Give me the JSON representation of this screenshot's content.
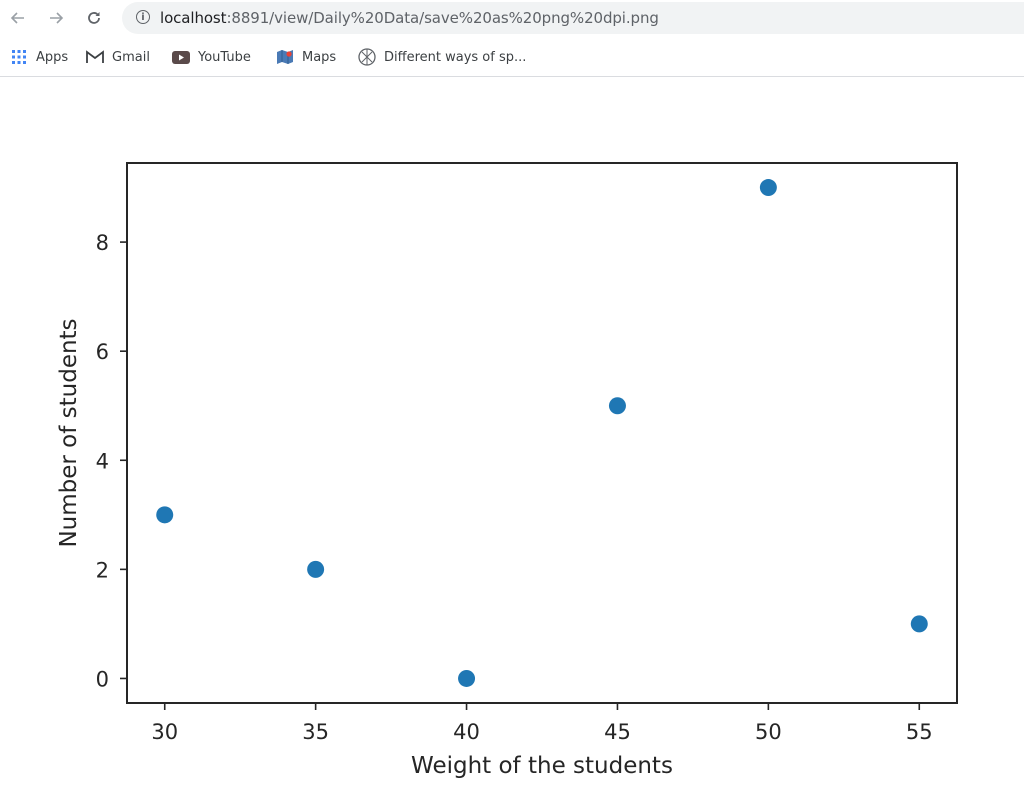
{
  "browser": {
    "url_host": "localhost",
    "url_rest": ":8891/view/Daily%20Data/save%20as%20png%20dpi.png",
    "bookmarks": [
      {
        "label": "Apps",
        "icon": "apps-grid-icon"
      },
      {
        "label": "Gmail",
        "icon": "gmail-icon"
      },
      {
        "label": "YouTube",
        "icon": "youtube-icon"
      },
      {
        "label": "Maps",
        "icon": "maps-icon"
      },
      {
        "label": "Different ways of sp...",
        "icon": "site-favicon-icon"
      }
    ]
  },
  "chart_data": {
    "type": "scatter",
    "x": [
      30,
      35,
      40,
      45,
      50,
      55
    ],
    "y": [
      3,
      2,
      0,
      5,
      9,
      1
    ],
    "xlabel": "Weight of the students",
    "ylabel": "Number of students",
    "xlim": [
      28.75,
      56.25
    ],
    "ylim": [
      -0.45,
      9.45
    ],
    "xticks": [
      30,
      35,
      40,
      45,
      50,
      55
    ],
    "yticks": [
      0,
      2,
      4,
      6,
      8
    ],
    "grid": false,
    "marker_color": "#1f77b4"
  }
}
